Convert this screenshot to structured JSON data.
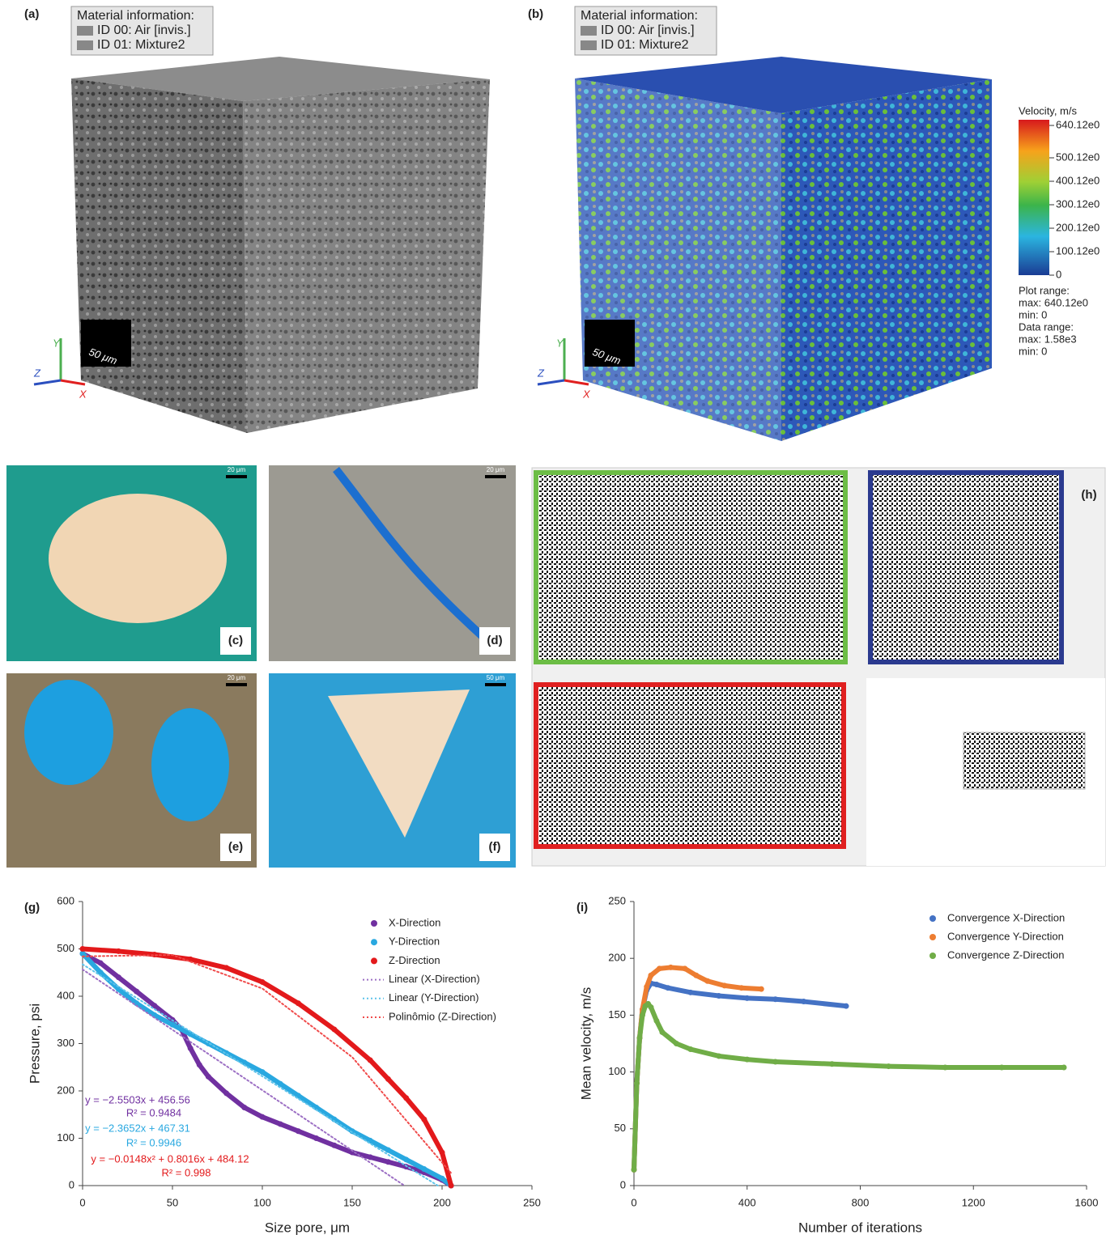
{
  "panels": {
    "a": {
      "label": "(a)",
      "material_title": "Material information:",
      "materials": [
        "ID 00: Air [invis.]",
        "ID 01: Mixture2"
      ],
      "scale": "50 μm",
      "axes": [
        "Y",
        "Z",
        "X"
      ]
    },
    "b": {
      "label": "(b)",
      "material_title": "Material information:",
      "materials": [
        "ID 00: Air [invis.]",
        "ID 01: Mixture2"
      ],
      "scale": "50 μm",
      "axes": [
        "Y",
        "Z",
        "X"
      ],
      "colorbar": {
        "title": "Velocity, m/s",
        "ticks": [
          "640.12e0",
          "500.12e0",
          "400.12e0",
          "300.12e0",
          "200.12e0",
          "100.12e0",
          "0"
        ],
        "info": [
          "Plot range:",
          "max: 640.12e0",
          "min: 0",
          "Data range:",
          "max: 1.58e3",
          "min: 0"
        ]
      }
    },
    "c": {
      "label": "(c)",
      "scale": "20 μm"
    },
    "d": {
      "label": "(d)",
      "scale": "20 μm"
    },
    "e": {
      "label": "(e)",
      "scale": "20 μm"
    },
    "f": {
      "label": "(f)",
      "scale": "50 μm"
    },
    "h": {
      "label": "(h)"
    }
  },
  "chart_data": [
    {
      "type": "line",
      "panel_label": "(g)",
      "x_label": "Size pore, μm",
      "y_label": "Pressure, psi",
      "xlim": [
        0,
        250
      ],
      "xticks": [
        0,
        50,
        100,
        150,
        200,
        250
      ],
      "ylim": [
        0,
        600
      ],
      "yticks": [
        0,
        100,
        200,
        300,
        400,
        500,
        600
      ],
      "series": [
        {
          "name": "X-Direction",
          "color": "#7030a0",
          "style": "markers",
          "x": [
            0,
            10,
            20,
            30,
            40,
            50,
            55,
            60,
            65,
            70,
            80,
            90,
            100,
            110,
            120,
            130,
            140,
            150,
            160,
            170,
            180,
            190,
            200,
            205
          ],
          "values": [
            490,
            470,
            440,
            410,
            380,
            350,
            330,
            290,
            255,
            230,
            195,
            165,
            145,
            130,
            115,
            100,
            85,
            70,
            60,
            50,
            40,
            28,
            12,
            0
          ]
        },
        {
          "name": "Y-Direction",
          "color": "#29a8e0",
          "style": "markers",
          "x": [
            0,
            10,
            20,
            30,
            40,
            50,
            60,
            70,
            80,
            90,
            100,
            110,
            120,
            130,
            140,
            150,
            160,
            170,
            180,
            190,
            200,
            205
          ],
          "values": [
            490,
            450,
            415,
            385,
            360,
            340,
            320,
            300,
            280,
            260,
            240,
            215,
            190,
            165,
            140,
            115,
            95,
            75,
            55,
            35,
            15,
            0
          ]
        },
        {
          "name": "Z-Direction",
          "color": "#e3191b",
          "style": "markers",
          "x": [
            0,
            20,
            40,
            60,
            80,
            100,
            120,
            140,
            160,
            170,
            180,
            190,
            200,
            205
          ],
          "values": [
            500,
            495,
            488,
            478,
            460,
            430,
            385,
            330,
            265,
            225,
            185,
            140,
            70,
            0
          ]
        },
        {
          "name": "Linear (X-Direction)",
          "color": "#9c6fc4",
          "style": "dotted",
          "x": [
            0,
            179
          ],
          "values": [
            456.56,
            0
          ]
        },
        {
          "name": "Linear (Y-Direction)",
          "color": "#5ec3ea",
          "style": "dotted",
          "x": [
            0,
            197.6
          ],
          "values": [
            467.31,
            0
          ]
        },
        {
          "name": "Polinômio (Z-Direction)",
          "color": "#f04b4b",
          "style": "dotted",
          "x": [
            0,
            50,
            100,
            150,
            205
          ],
          "values": [
            484.12,
            487.2,
            416.3,
            271.4,
            26.5
          ]
        }
      ],
      "annotations": [
        {
          "text": "y = −2.5503x + 456.56",
          "color": "#7030a0"
        },
        {
          "text": "R² = 0.9484",
          "color": "#7030a0"
        },
        {
          "text": "y = −2.3652x + 467.31",
          "color": "#29a8e0"
        },
        {
          "text": "R² = 0.9946",
          "color": "#29a8e0"
        },
        {
          "text": "y = −0.0148x² + 0.8016x + 484.12",
          "color": "#e3191b"
        },
        {
          "text": "R² = 0.998",
          "color": "#e3191b"
        }
      ]
    },
    {
      "type": "line",
      "panel_label": "(i)",
      "x_label": "Number of iterations",
      "y_label": "Mean velocity, m/s",
      "xlim": [
        0,
        1600
      ],
      "xticks": [
        0,
        400,
        800,
        1200,
        1600
      ],
      "ylim": [
        0,
        250
      ],
      "yticks": [
        0,
        50,
        100,
        150,
        200,
        250
      ],
      "series": [
        {
          "name": "Convergence X-Direction",
          "color": "#4472c4",
          "style": "markers",
          "x": [
            0,
            10,
            20,
            30,
            45,
            60,
            80,
            120,
            200,
            300,
            400,
            500,
            600,
            750
          ],
          "values": [
            14,
            90,
            130,
            155,
            172,
            178,
            177,
            174,
            170,
            167,
            165,
            164,
            162,
            158
          ]
        },
        {
          "name": "Convergence Y-Direction",
          "color": "#ed7d31",
          "style": "markers",
          "x": [
            0,
            10,
            20,
            30,
            45,
            60,
            90,
            130,
            180,
            220,
            260,
            320,
            380,
            450
          ],
          "values": [
            14,
            90,
            130,
            155,
            175,
            185,
            191,
            192,
            191,
            185,
            180,
            176,
            174,
            173
          ]
        },
        {
          "name": "Convergence Z-Direction",
          "color": "#70ad47",
          "style": "markers",
          "x": [
            0,
            10,
            20,
            30,
            40,
            50,
            60,
            80,
            100,
            150,
            200,
            300,
            400,
            500,
            700,
            900,
            1100,
            1300,
            1520
          ],
          "values": [
            14,
            90,
            130,
            150,
            158,
            160,
            157,
            145,
            135,
            125,
            120,
            114,
            111,
            109,
            107,
            105,
            104,
            104,
            104
          ]
        }
      ]
    }
  ]
}
